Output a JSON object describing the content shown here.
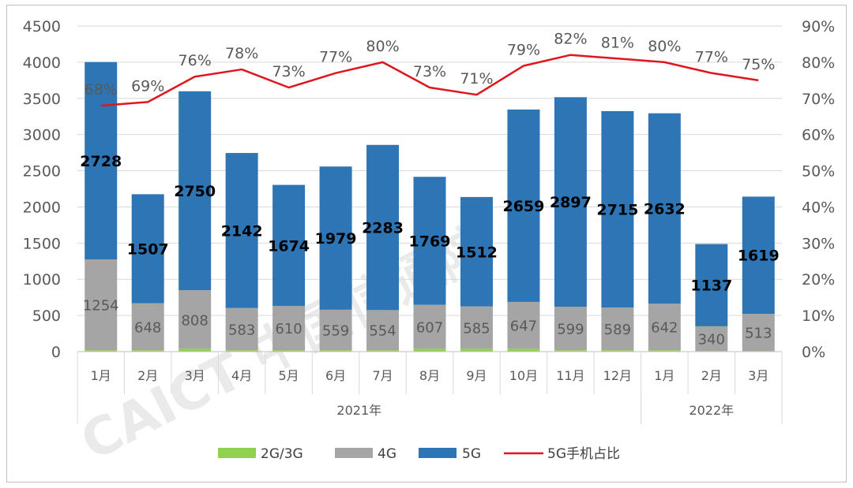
{
  "chart_data": {
    "type": "bar",
    "stacked": true,
    "categories": [
      "1月",
      "2月",
      "3月",
      "4月",
      "5月",
      "6月",
      "7月",
      "8月",
      "9月",
      "10月",
      "11月",
      "12月",
      "1月",
      "2月",
      "3月"
    ],
    "year_groups": [
      {
        "label": "2021年",
        "start": 0,
        "end": 11
      },
      {
        "label": "2022年",
        "start": 12,
        "end": 14
      }
    ],
    "series": [
      {
        "name": "2G/3G",
        "type": "bar",
        "axis": "left",
        "values": [
          20,
          20,
          40,
          20,
          20,
          20,
          20,
          40,
          40,
          40,
          20,
          20,
          20,
          10,
          10
        ]
      },
      {
        "name": "4G",
        "type": "bar",
        "axis": "left",
        "values": [
          1254,
          648,
          808,
          583,
          610,
          559,
          554,
          607,
          585,
          647,
          599,
          589,
          642,
          340,
          513
        ]
      },
      {
        "name": "5G",
        "type": "bar",
        "axis": "left",
        "values": [
          2728,
          1507,
          2750,
          2142,
          1674,
          1979,
          2283,
          1769,
          1512,
          2659,
          2897,
          2715,
          2632,
          1137,
          1619
        ]
      },
      {
        "name": "5G手机占比",
        "type": "line",
        "axis": "right",
        "values": [
          68,
          69,
          76,
          78,
          73,
          77,
          80,
          73,
          71,
          79,
          82,
          81,
          80,
          77,
          75
        ]
      }
    ],
    "y_left": {
      "range": [
        0,
        4500
      ],
      "ticks": [
        "0",
        "500",
        "1000",
        "1500",
        "2000",
        "2500",
        "3000",
        "3500",
        "4000",
        "4500"
      ]
    },
    "y_right": {
      "range": [
        0,
        90
      ],
      "ticks": [
        "0%",
        "10%",
        "20%",
        "30%",
        "40%",
        "50%",
        "60%",
        "70%",
        "80%",
        "90%"
      ]
    },
    "legend_position": "bottom",
    "legend": [
      {
        "name": "2G/3G",
        "color": "#92d050"
      },
      {
        "name": "4G",
        "color": "#a5a5a5"
      },
      {
        "name": "5G",
        "color": "#2e75b6"
      },
      {
        "name": "5G手机占比",
        "color": "#e0161e"
      }
    ],
    "colors": {
      "g23": "#92d050",
      "g4": "#a5a5a5",
      "g5": "#2e75b6",
      "line": "#e0161e"
    },
    "watermark": "CAICT 中国信通院"
  }
}
